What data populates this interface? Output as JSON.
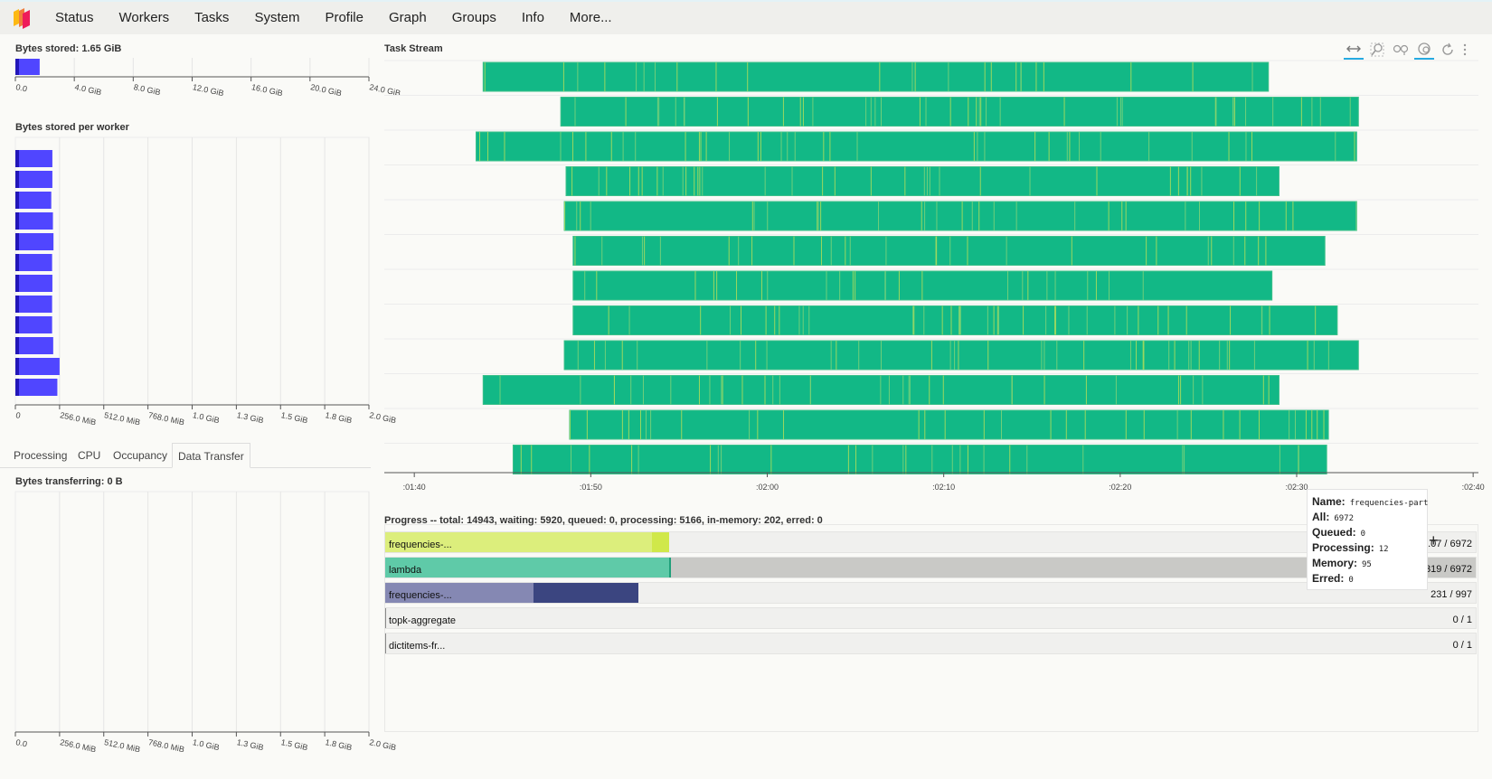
{
  "nav": {
    "logo_icon": "dask-logo-icon",
    "items": [
      "Status",
      "Workers",
      "Tasks",
      "System",
      "Profile",
      "Graph",
      "Groups",
      "Info",
      "More..."
    ]
  },
  "bytes_stored": {
    "title": "Bytes stored: 1.65 GiB",
    "ticks": [
      "0.0",
      "4.0 GiB",
      "8.0 GiB",
      "12.0 GiB",
      "16.0 GiB",
      "20.0 GiB",
      "24.0 GiB"
    ],
    "value_gib": 1.65,
    "max_gib": 24
  },
  "bytes_per_worker": {
    "title": "Bytes stored per worker",
    "ticks": [
      "0",
      "256.0 MiB",
      "512.0 MiB",
      "768.0 MiB",
      "1.0 GiB",
      "1.3 GiB",
      "1.5 GiB",
      "1.8 GiB",
      "2.0 GiB"
    ],
    "values_mib": [
      134,
      134,
      130,
      136,
      138,
      133,
      134,
      133,
      133,
      137,
      160,
      152
    ],
    "max_mib": 2048
  },
  "tabs": [
    "Processing",
    "CPU",
    "Occupancy",
    "Data Transfer"
  ],
  "active_tab": "Data Transfer",
  "bytes_transferring": {
    "title": "Bytes transferring: 0 B",
    "ticks": [
      "0.0",
      "256.0 MiB",
      "512.0 MiB",
      "768.0 MiB",
      "1.0 GiB",
      "1.3 GiB",
      "1.5 GiB",
      "1.8 GiB",
      "2.0 GiB"
    ]
  },
  "task_stream": {
    "title": "Task Stream",
    "time_ticks": [
      ":01:40",
      ":01:50",
      ":02:00",
      ":02:10",
      ":02:20",
      ":02:30",
      ":02:40"
    ],
    "tick_seconds": [
      100,
      110,
      120,
      130,
      140,
      150,
      160
    ],
    "range_seconds": [
      98.3,
      160.3
    ],
    "lanes": [
      [
        103.9,
        148.4
      ],
      [
        108.3,
        153.5
      ],
      [
        103.5,
        153.4
      ],
      [
        108.6,
        149
      ],
      [
        108.5,
        153.4
      ],
      [
        109,
        151.6
      ],
      [
        109,
        148.6
      ],
      [
        109,
        152.3
      ],
      [
        108.5,
        153.5
      ],
      [
        103.9,
        149
      ],
      [
        108.8,
        151.8
      ],
      [
        105.6,
        151.7
      ]
    ],
    "task_color": "#12b886",
    "tools": [
      "pan-icon",
      "box-zoom-icon",
      "wheel-zoom-icon",
      "hover-icon",
      "reset-icon"
    ]
  },
  "progress": {
    "title": "Progress -- total: 14943, waiting: 5920, queued: 0, processing: 5166, in-memory: 202, erred: 0",
    "rows": [
      {
        "label": "frequencies-...",
        "count": "...07 / 6972",
        "memory_frac": 0.245,
        "processing_frac": 0.015,
        "bg_frac": 0,
        "mem_color": "#dcee7c",
        "proc_color": "#d0e84a"
      },
      {
        "label": "lambda",
        "count": "...319 / 6972",
        "memory_frac": 0.26,
        "processing_frac": 0.002,
        "bg_frac": 1,
        "mem_color": "#5fcaa8",
        "proc_color": "#20a07a"
      },
      {
        "label": "frequencies-...",
        "count": "231 / 997",
        "memory_frac": 0.136,
        "processing_frac": 0.096,
        "bg_frac": 0,
        "mem_color": "#8588b3",
        "proc_color": "#3b4580"
      },
      {
        "label": "topk-aggregate",
        "count": "0 / 1",
        "memory_frac": 0,
        "processing_frac": 0,
        "bg_frac": 0,
        "mem_color": "#888",
        "proc_color": "#888"
      },
      {
        "label": "dictitems-fr...",
        "count": "0 / 1",
        "memory_frac": 0,
        "processing_frac": 0,
        "bg_frac": 0,
        "mem_color": "#888",
        "proc_color": "#888"
      }
    ]
  },
  "tooltip": {
    "rows": [
      {
        "key": "Name:",
        "value": "frequencies-part"
      },
      {
        "key": "All:",
        "value": "6972"
      },
      {
        "key": "Queued:",
        "value": "0"
      },
      {
        "key": "Processing:",
        "value": "12"
      },
      {
        "key": "Memory:",
        "value": "95"
      },
      {
        "key": "Erred:",
        "value": "0"
      }
    ]
  }
}
